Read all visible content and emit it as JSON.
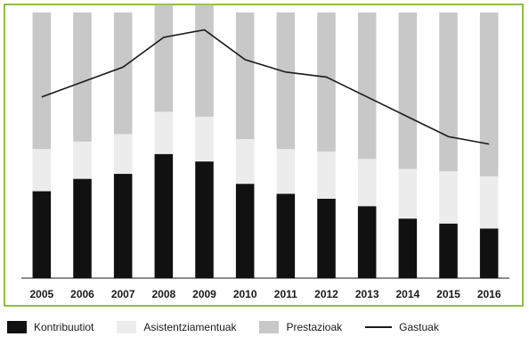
{
  "chart_data": {
    "type": "bar",
    "stacked": true,
    "categories": [
      "2005",
      "2006",
      "2007",
      "2008",
      "2009",
      "2010",
      "2011",
      "2012",
      "2013",
      "2014",
      "2015",
      "2016"
    ],
    "series": [
      {
        "name": "Kontribuutiot",
        "color": "#111111",
        "values": [
          35,
          40,
          42,
          50,
          47,
          38,
          34,
          32,
          29,
          24,
          22,
          20
        ],
        "labels": [
          "",
          "",
          "",
          "",
          "",
          "",
          "",
          "",
          "",
          "",
          "",
          ""
        ]
      },
      {
        "name": "Asistentziamentuak",
        "color": "#ececec",
        "values": [
          17,
          15,
          16,
          17,
          18,
          18,
          18,
          19,
          19,
          20,
          21,
          21
        ],
        "labels": [
          "",
          "",
          "",
          "",
          "",
          "",
          "",
          "",
          "",
          "",
          "",
          ""
        ]
      },
      {
        "name": "Prestazioak",
        "color": "#c8c8c8",
        "values": [
          55,
          52,
          49,
          43,
          45,
          51,
          55,
          56,
          59,
          63,
          64,
          66
        ],
        "labels": [
          "",
          "",
          "",
          "",
          "",
          "",
          "",
          "",
          "",
          "",
          "",
          ""
        ]
      }
    ],
    "line": {
      "name": "Gastuak",
      "color": "#1a1a1a",
      "values": [
        73,
        79,
        85,
        97,
        100,
        88,
        83,
        81,
        73,
        65,
        57,
        54
      ],
      "labels": [
        "",
        "",
        "",
        "",
        "",
        "",
        "",
        "",
        "",
        "",
        "",
        ""
      ]
    },
    "ylim": [
      0,
      107
    ],
    "title": "",
    "xlabel": "",
    "ylabel": "",
    "grid": false,
    "legend_position": "bottom"
  },
  "legend": {
    "items": [
      {
        "label": "Kontribuutiot",
        "kind": "box",
        "color": "#111111"
      },
      {
        "label": "Asistentziamentuak",
        "kind": "box",
        "color": "#ececec"
      },
      {
        "label": "Prestazioak",
        "kind": "box",
        "color": "#c8c8c8"
      },
      {
        "label": "Gastuak",
        "kind": "line",
        "color": "#1a1a1a"
      }
    ]
  },
  "colors": {
    "frame": "#8fbf3f",
    "background": "#ffffff"
  }
}
